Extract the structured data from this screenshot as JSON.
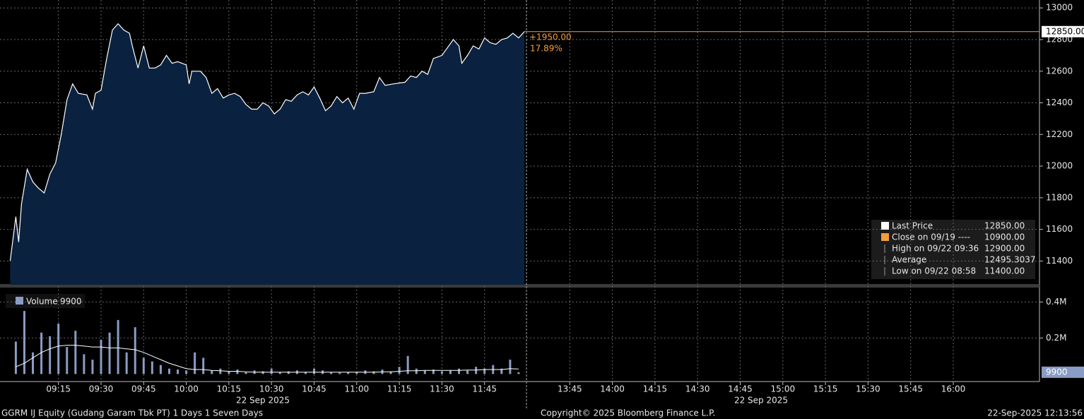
{
  "chart_data": [
    {
      "type": "area",
      "title": "GGRM IJ Equity (Gudang Garam Tbk PT) 1 Days 1 Seven Days",
      "x": [
        "08:58",
        "09:00",
        "09:01",
        "09:02",
        "09:04",
        "09:06",
        "09:08",
        "09:10",
        "09:12",
        "09:14",
        "09:16",
        "09:18",
        "09:20",
        "09:22",
        "09:25",
        "09:27",
        "09:28",
        "09:30",
        "09:32",
        "09:34",
        "09:36",
        "09:38",
        "09:40",
        "09:41",
        "09:43",
        "09:45",
        "09:47",
        "09:49",
        "09:51",
        "09:53",
        "09:55",
        "09:57",
        "10:00",
        "10:01",
        "10:02",
        "10:05",
        "10:07",
        "10:09",
        "10:11",
        "10:13",
        "10:15",
        "10:17",
        "10:19",
        "10:21",
        "10:23",
        "10:25",
        "10:27",
        "10:29",
        "10:31",
        "10:33",
        "10:35",
        "10:37",
        "10:39",
        "10:41",
        "10:43",
        "10:45",
        "10:47",
        "10:49",
        "10:51",
        "10:53",
        "10:55",
        "10:57",
        "10:59",
        "11:01",
        "11:03",
        "11:06",
        "11:08",
        "11:10",
        "11:13",
        "11:17",
        "11:19",
        "11:21",
        "11:23",
        "11:25",
        "11:27",
        "11:30",
        "11:32",
        "11:34",
        "11:36",
        "11:37",
        "11:39",
        "11:41",
        "11:43",
        "11:45",
        "11:47",
        "11:49",
        "11:51",
        "11:53",
        "11:55",
        "11:57",
        "11:59"
      ],
      "series": [
        {
          "name": "Last Price",
          "color": "#ffffff",
          "fill": "#0b2140",
          "values": [
            11400,
            11680,
            11520,
            11760,
            11980,
            11900,
            11860,
            11830,
            11950,
            12020,
            12200,
            12420,
            12520,
            12460,
            12450,
            12360,
            12460,
            12480,
            12680,
            12860,
            12900,
            12860,
            12840,
            12760,
            12620,
            12760,
            12620,
            12620,
            12640,
            12700,
            12650,
            12660,
            12640,
            12520,
            12600,
            12600,
            12560,
            12460,
            12490,
            12430,
            12450,
            12460,
            12440,
            12390,
            12360,
            12360,
            12400,
            12380,
            12330,
            12360,
            12420,
            12410,
            12450,
            12470,
            12450,
            12500,
            12430,
            12350,
            12380,
            12440,
            12400,
            12430,
            12360,
            12460,
            12460,
            12470,
            12560,
            12510,
            12520,
            12530,
            12570,
            12560,
            12600,
            12580,
            12680,
            12700,
            12750,
            12800,
            12760,
            12650,
            12700,
            12760,
            12740,
            12810,
            12780,
            12770,
            12800,
            12810,
            12840,
            12810,
            12850
          ],
          "last_label": "12850.00"
        }
      ],
      "change_label": "+1950.00",
      "change_pct_label": "17.89%",
      "change_color": "#f39c3c",
      "ylim": [
        11250,
        13050
      ],
      "yticks": [
        11400,
        11600,
        11800,
        12000,
        12200,
        12400,
        12600,
        12800,
        13000
      ],
      "xticks": [
        "09:15",
        "09:30",
        "09:45",
        "10:00",
        "10:15",
        "10:30",
        "10:45",
        "11:00",
        "11:15",
        "11:30",
        "11:45",
        "13:45",
        "14:00",
        "14:15",
        "14:30",
        "14:45",
        "15:00",
        "15:15",
        "15:30",
        "15:45",
        "16:00"
      ],
      "date_labels": [
        "22 Sep 2025",
        "22 Sep 2025"
      ],
      "grid": true,
      "legend": [
        {
          "name": "Last Price",
          "value": "12850.00",
          "color": "#ffffff"
        },
        {
          "name": "Close on 09/19 ----",
          "value": "10900.00",
          "color": "#f39c3c"
        },
        {
          "name": "High on 09/22 09:36",
          "value": "12900.00"
        },
        {
          "name": "Average",
          "value": "12495.3037"
        },
        {
          "name": "Low on 09/22 08:58",
          "value": "11400.00"
        }
      ]
    },
    {
      "type": "bar",
      "x": [
        "09:00",
        "09:03",
        "09:06",
        "09:09",
        "09:12",
        "09:15",
        "09:18",
        "09:21",
        "09:24",
        "09:27",
        "09:30",
        "09:33",
        "09:36",
        "09:39",
        "09:42",
        "09:45",
        "09:48",
        "09:51",
        "09:54",
        "09:57",
        "10:00",
        "10:03",
        "10:06",
        "10:09",
        "10:12",
        "10:15",
        "10:18",
        "10:21",
        "10:24",
        "10:27",
        "10:30",
        "10:33",
        "10:36",
        "10:39",
        "10:42",
        "10:45",
        "10:48",
        "10:51",
        "10:54",
        "10:57",
        "11:00",
        "11:03",
        "11:06",
        "11:09",
        "11:12",
        "11:15",
        "11:18",
        "11:21",
        "11:24",
        "11:27",
        "11:30",
        "11:33",
        "11:36",
        "11:39",
        "11:42",
        "11:45",
        "11:48",
        "11:51",
        "11:54",
        "11:57"
      ],
      "series": [
        {
          "name": "Volume",
          "color": "#8a9cc4",
          "values": [
            180000,
            350000,
            120000,
            230000,
            210000,
            280000,
            150000,
            240000,
            110000,
            80000,
            190000,
            230000,
            300000,
            120000,
            260000,
            90000,
            70000,
            50000,
            30000,
            25000,
            20000,
            120000,
            90000,
            20000,
            30000,
            15000,
            25000,
            10000,
            20000,
            15000,
            30000,
            10000,
            15000,
            20000,
            12000,
            30000,
            20000,
            10000,
            8000,
            12000,
            10000,
            20000,
            15000,
            25000,
            15000,
            40000,
            100000,
            30000,
            20000,
            25000,
            15000,
            20000,
            30000,
            20000,
            40000,
            30000,
            50000,
            30000,
            80000,
            9900
          ],
          "last_label": "9900",
          "average": [
            40000,
            60000,
            90000,
            120000,
            140000,
            155000,
            160000,
            160000,
            155000,
            150000,
            150000,
            145000,
            145000,
            140000,
            135000,
            120000,
            100000,
            80000,
            60000,
            45000,
            30000,
            25000,
            25000,
            20000,
            18000,
            15000,
            15000,
            12000,
            10000,
            10000,
            10000,
            10000,
            10000,
            10000,
            10000,
            10000,
            10000,
            10000,
            10000,
            10000,
            10000,
            10000,
            10000,
            12000,
            12000,
            15000,
            18000,
            18000,
            20000,
            20000,
            20000,
            20000,
            20000,
            22000,
            22000,
            25000,
            25000,
            25000,
            30000,
            28000
          ]
        }
      ],
      "ylim": [
        -30000,
        480000
      ],
      "yticks": [
        {
          "value": 200000,
          "label": "0.2M"
        },
        {
          "value": 400000,
          "label": "0.4M"
        }
      ],
      "grid": true
    }
  ],
  "footer": {
    "left": "GGRM IJ Equity (Gudang Garam Tbk PT) 1 Days 1 Seven Days",
    "center": "Copyright© 2025 Bloomberg Finance L.P.",
    "right": "22-Sep-2025 12:13:56"
  }
}
